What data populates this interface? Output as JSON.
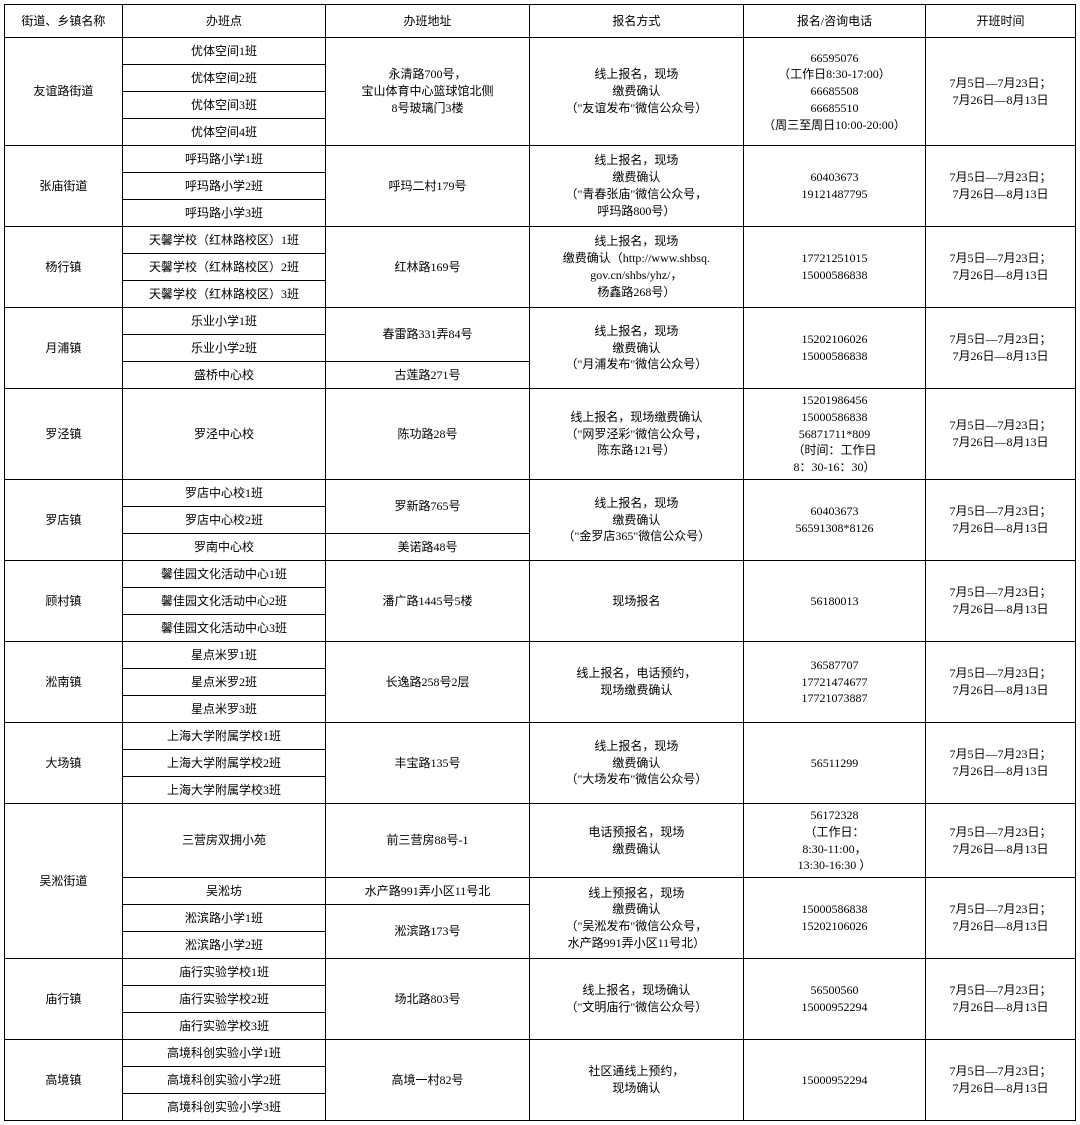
{
  "headers": [
    "街道、乡镇名称",
    "办班点",
    "办班地址",
    "报名方式",
    "报名/咨询电话",
    "开班时间"
  ],
  "districts": [
    {
      "name": "友谊路街道",
      "classes": [
        "优体空间1班",
        "优体空间2班",
        "优体空间3班",
        "优体空间4班"
      ],
      "addrs": [
        {
          "txt": "永清路700号，\n宝山体育中心篮球馆北侧\n8号玻璃门3楼",
          "span": 4
        }
      ],
      "signups": [
        {
          "txt": "线上报名，现场\n缴费确认\n（\"友谊发布\"微信公众号）",
          "span": 4
        }
      ],
      "phones": [
        {
          "txt": "66595076\n（工作日8:30-17:00）\n66685508\n66685510\n（周三至周日10:00-20:00）",
          "span": 4
        }
      ],
      "times": [
        {
          "txt": "7月5日—7月23日；\n7月26日—8月13日",
          "span": 4
        }
      ]
    },
    {
      "name": "张庙街道",
      "classes": [
        "呼玛路小学1班",
        "呼玛路小学2班",
        "呼玛路小学3班"
      ],
      "addrs": [
        {
          "txt": "呼玛二村179号",
          "span": 3
        }
      ],
      "signups": [
        {
          "txt": "线上报名，现场\n缴费确认\n（\"青春张庙\"微信公众号，\n呼玛路800号）",
          "span": 3
        }
      ],
      "phones": [
        {
          "txt": "60403673\n19121487795",
          "span": 3
        }
      ],
      "times": [
        {
          "txt": "7月5日—7月23日；\n7月26日—8月13日",
          "span": 3
        }
      ]
    },
    {
      "name": "杨行镇",
      "classes": [
        "天馨学校（红林路校区）1班",
        "天馨学校（红林路校区）2班",
        "天馨学校（红林路校区）3班"
      ],
      "addrs": [
        {
          "txt": "红林路169号",
          "span": 3
        }
      ],
      "signups": [
        {
          "txt": "线上报名，现场\n缴费确认（http://www.shbsq.\ngov.cn/shbs/yhz/，\n杨鑫路268号）",
          "span": 3
        }
      ],
      "phones": [
        {
          "txt": "17721251015\n15000586838",
          "span": 3
        }
      ],
      "times": [
        {
          "txt": "7月5日—7月23日；\n7月26日—8月13日",
          "span": 3
        }
      ]
    },
    {
      "name": "月浦镇",
      "classes": [
        "乐业小学1班",
        "乐业小学2班",
        "盛桥中心校"
      ],
      "addrs": [
        {
          "txt": "春雷路331弄84号",
          "span": 2
        },
        {
          "txt": "古莲路271号",
          "span": 1
        }
      ],
      "signups": [
        {
          "txt": "线上报名，现场\n缴费确认\n（\"月浦发布\"微信公众号）",
          "span": 3
        }
      ],
      "phones": [
        {
          "txt": "15202106026\n15000586838",
          "span": 3
        }
      ],
      "times": [
        {
          "txt": "7月5日—7月23日；\n7月26日—8月13日",
          "span": 3
        }
      ]
    },
    {
      "name": "罗泾镇",
      "classes": [
        "罗泾中心校"
      ],
      "addrs": [
        {
          "txt": "陈功路28号",
          "span": 1
        }
      ],
      "signups": [
        {
          "txt": "线上报名，现场缴费确认\n（\"网罗泾彩\"微信公众号，\n陈东路121号）",
          "span": 1
        }
      ],
      "phones": [
        {
          "txt": "15201986456\n15000586838\n56871711*809\n（时间：工作日\n8：30-16：30）",
          "span": 1
        }
      ],
      "times": [
        {
          "txt": "7月5日—7月23日；\n7月26日—8月13日",
          "span": 1
        }
      ]
    },
    {
      "name": "罗店镇",
      "classes": [
        "罗店中心校1班",
        "罗店中心校2班",
        "罗南中心校"
      ],
      "addrs": [
        {
          "txt": "罗新路765号",
          "span": 2
        },
        {
          "txt": "美诺路48号",
          "span": 1
        }
      ],
      "signups": [
        {
          "txt": "线上报名，现场\n缴费确认\n（\"金罗店365\"微信公众号）",
          "span": 3
        }
      ],
      "phones": [
        {
          "txt": "60403673\n56591308*8126",
          "span": 3
        }
      ],
      "times": [
        {
          "txt": "7月5日—7月23日；\n7月26日—8月13日",
          "span": 3
        }
      ]
    },
    {
      "name": "顾村镇",
      "classes": [
        "馨佳园文化活动中心1班",
        "馨佳园文化活动中心2班",
        "馨佳园文化活动中心3班"
      ],
      "addrs": [
        {
          "txt": "潘广路1445号5楼",
          "span": 3
        }
      ],
      "signups": [
        {
          "txt": "现场报名",
          "span": 3
        }
      ],
      "phones": [
        {
          "txt": "56180013",
          "span": 3
        }
      ],
      "times": [
        {
          "txt": "7月5日—7月23日；\n7月26日—8月13日",
          "span": 3
        }
      ]
    },
    {
      "name": "淞南镇",
      "classes": [
        "星点米罗1班",
        "星点米罗2班",
        "星点米罗3班"
      ],
      "addrs": [
        {
          "txt": "长逸路258号2层",
          "span": 3
        }
      ],
      "signups": [
        {
          "txt": "线上报名，电话预约，\n现场缴费确认",
          "span": 3
        }
      ],
      "phones": [
        {
          "txt": "36587707\n17721474677\n17721073887",
          "span": 3
        }
      ],
      "times": [
        {
          "txt": "7月5日—7月23日；\n7月26日—8月13日",
          "span": 3
        }
      ]
    },
    {
      "name": "大场镇",
      "classes": [
        "上海大学附属学校1班",
        "上海大学附属学校2班",
        "上海大学附属学校3班"
      ],
      "addrs": [
        {
          "txt": "丰宝路135号",
          "span": 3
        }
      ],
      "signups": [
        {
          "txt": "线上报名，现场\n缴费确认\n（\"大场发布\"微信公众号）",
          "span": 3
        }
      ],
      "phones": [
        {
          "txt": "56511299",
          "span": 3
        }
      ],
      "times": [
        {
          "txt": "7月5日—7月23日；\n7月26日—8月13日",
          "span": 3
        }
      ]
    },
    {
      "name": "吴淞街道",
      "classes": [
        "三营房双拥小苑",
        "吴淞坊",
        "淞滨路小学1班",
        "淞滨路小学2班"
      ],
      "addrs": [
        {
          "txt": "前三营房88号-1",
          "span": 1
        },
        {
          "txt": "水产路991弄小区11号北",
          "span": 1
        },
        {
          "txt": "淞滨路173号",
          "span": 2
        }
      ],
      "signups": [
        {
          "txt": "电话预报名，现场\n缴费确认",
          "span": 1
        },
        {
          "txt": "线上预报名，现场\n缴费确认\n（\"吴淞发布\"微信公众号，\n水产路991弄小区11号北）",
          "span": 3
        }
      ],
      "phones": [
        {
          "txt": "56172328\n（工作日：\n8:30-11:00，\n13:30-16:30 ）",
          "span": 1
        },
        {
          "txt": "15000586838\n15202106026",
          "span": 3
        }
      ],
      "times": [
        {
          "txt": "7月5日—7月23日；\n7月26日—8月13日",
          "span": 1
        },
        {
          "txt": "7月5日—7月23日；\n7月26日—8月13日",
          "span": 3
        }
      ]
    },
    {
      "name": "庙行镇",
      "classes": [
        "庙行实验学校1班",
        "庙行实验学校2班",
        "庙行实验学校3班"
      ],
      "addrs": [
        {
          "txt": "场北路803号",
          "span": 3
        }
      ],
      "signups": [
        {
          "txt": "线上报名，现场确认\n（\"文明庙行\"微信公众号）",
          "span": 3
        }
      ],
      "phones": [
        {
          "txt": "56500560\n15000952294",
          "span": 3
        }
      ],
      "times": [
        {
          "txt": "7月5日—7月23日；\n7月26日—8月13日",
          "span": 3
        }
      ]
    },
    {
      "name": "高境镇",
      "classes": [
        "高境科创实验小学1班",
        "高境科创实验小学2班",
        "高境科创实验小学3班"
      ],
      "addrs": [
        {
          "txt": "高境一村82号",
          "span": 3
        }
      ],
      "signups": [
        {
          "txt": "社区通线上预约，\n现场确认",
          "span": 3
        }
      ],
      "phones": [
        {
          "txt": "15000952294",
          "span": 3
        }
      ],
      "times": [
        {
          "txt": "7月5日—7月23日；\n7月26日—8月13日",
          "span": 3
        }
      ]
    }
  ]
}
